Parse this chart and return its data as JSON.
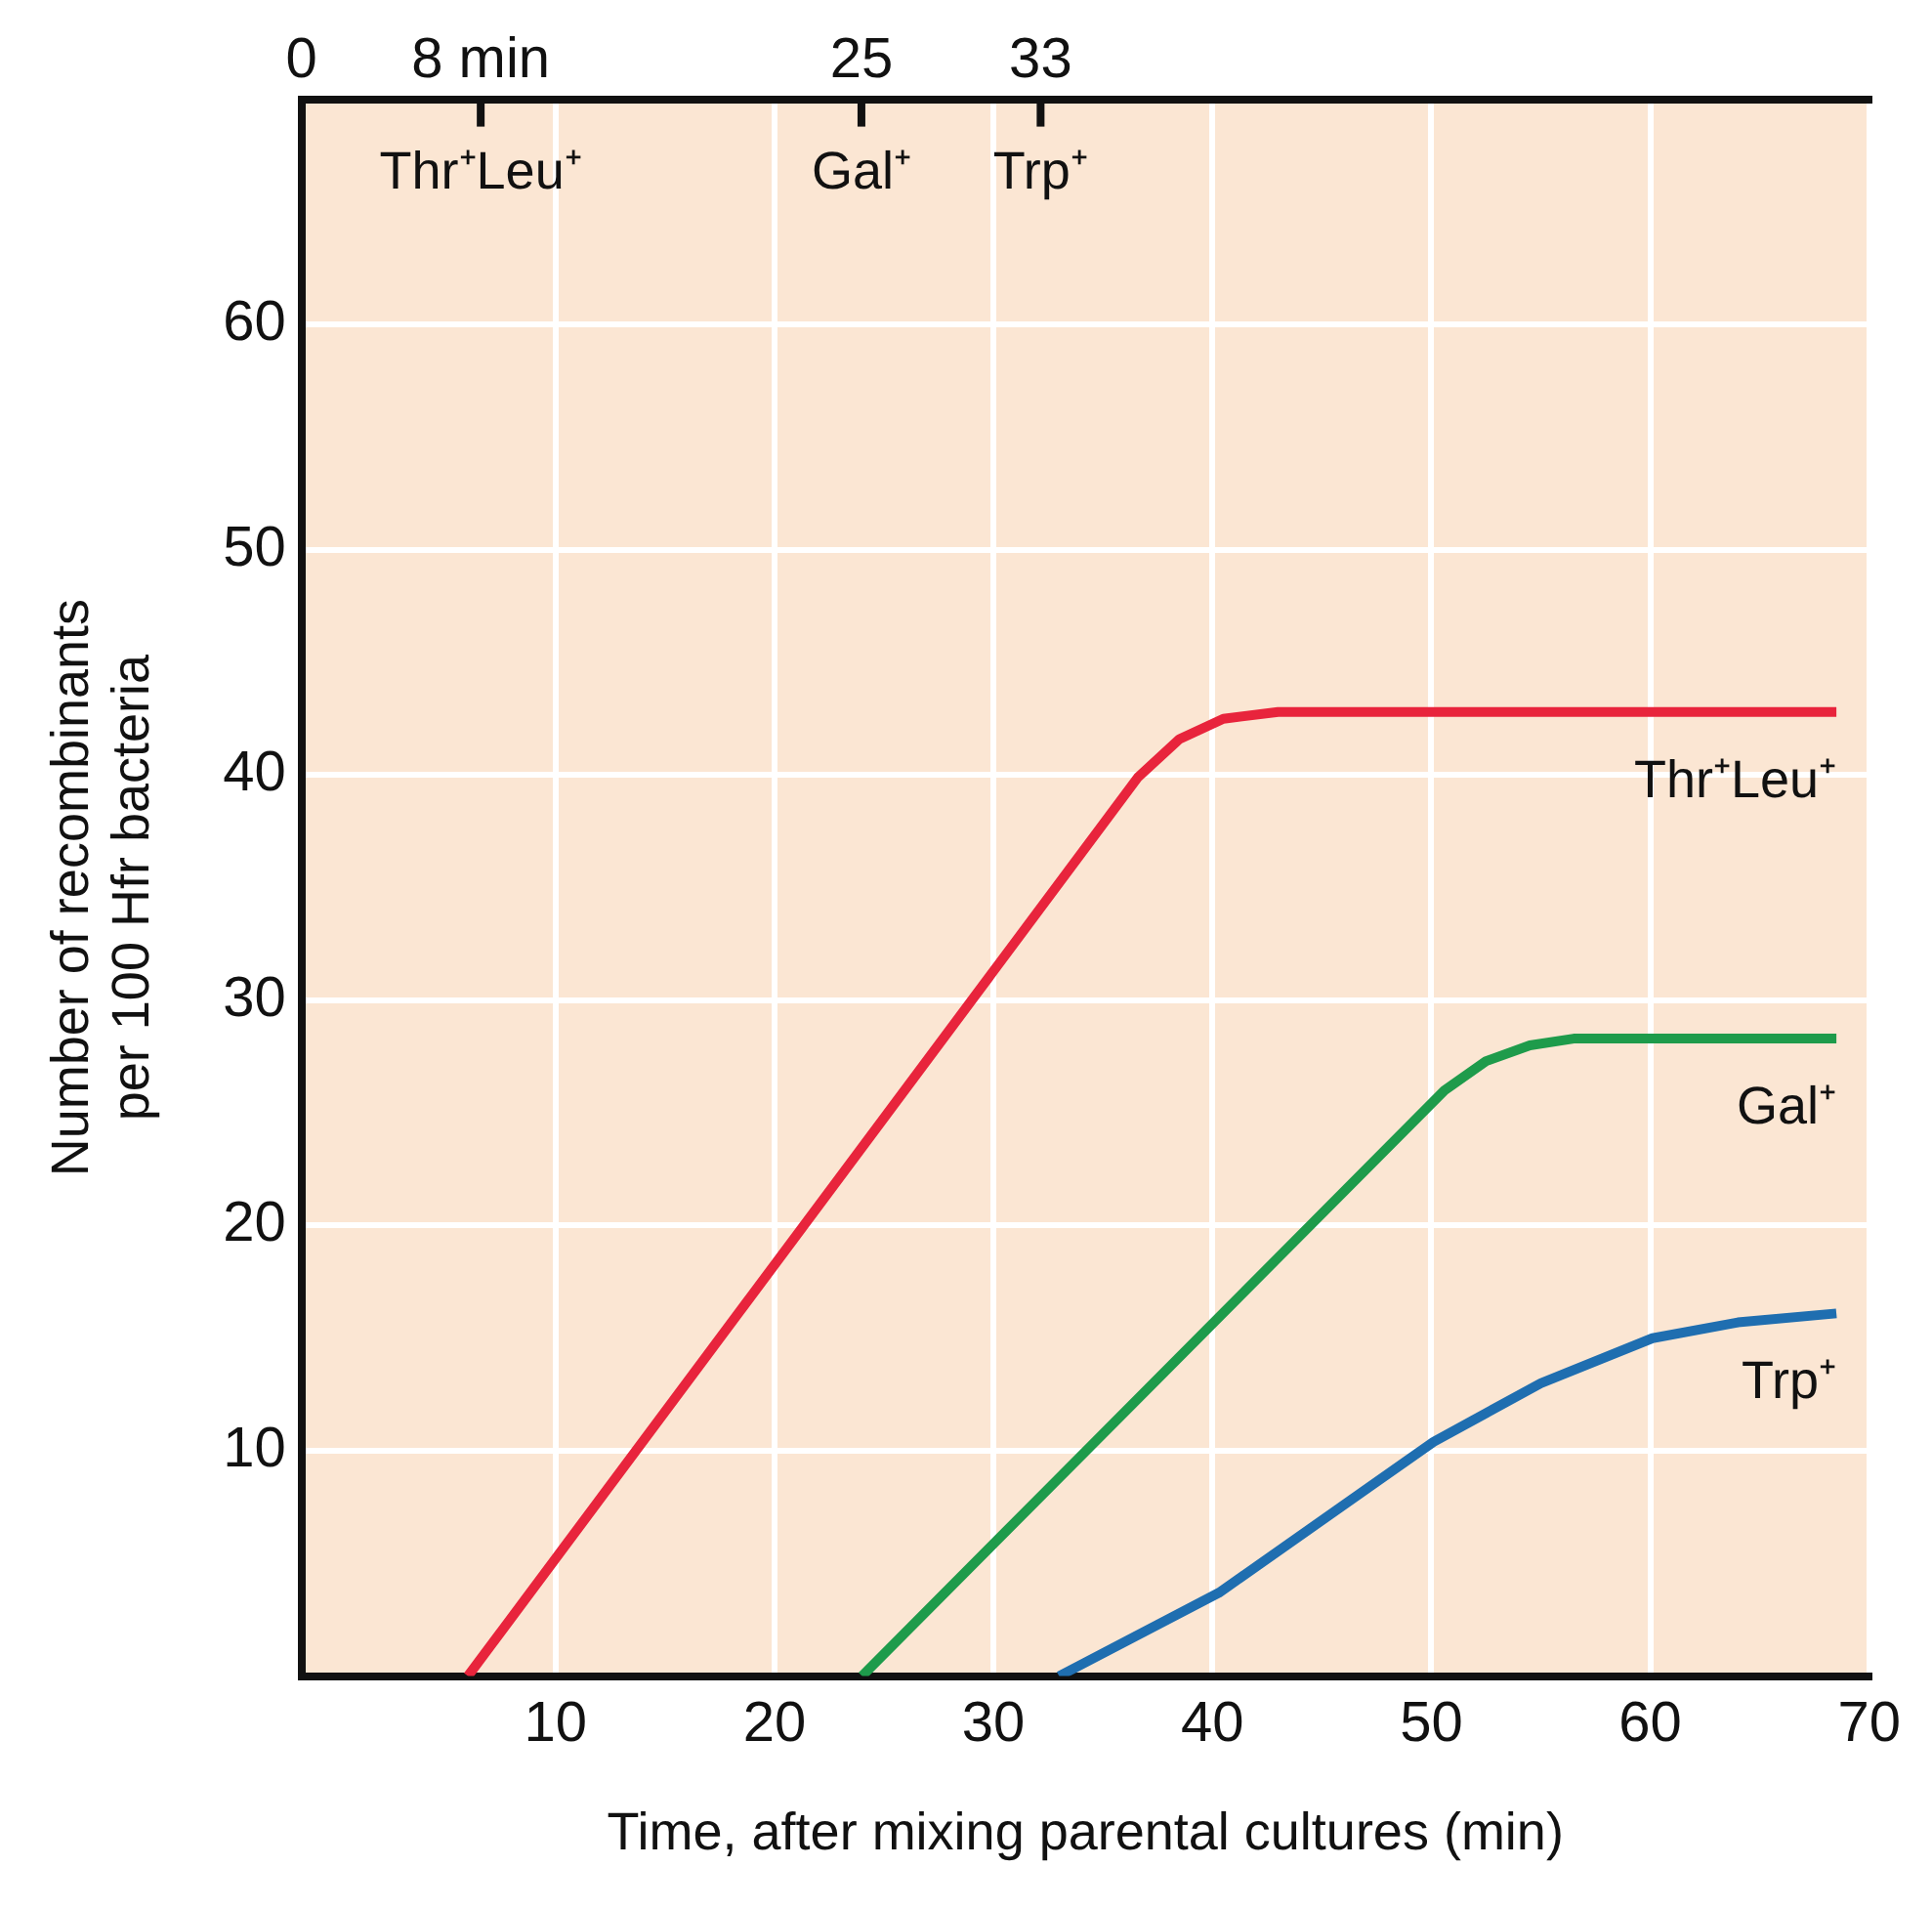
{
  "chart_data": {
    "type": "line",
    "xlabel": "Time, after mixing parental cultures (min)",
    "ylabel": "Number of recombinants\nper 100 Hfr bacteria",
    "xlim": [
      -1.6,
      70
    ],
    "xticks": [
      10,
      20,
      30,
      40,
      50,
      60,
      70
    ],
    "x2lim": [
      0,
      70
    ],
    "x2ticks": [
      0,
      {
        "value": 8,
        "label": "8 min"
      },
      25,
      33
    ],
    "ylim": [
      0,
      70
    ],
    "yticks": [
      10,
      20,
      30,
      40,
      50,
      60
    ],
    "grid": true,
    "legend": false,
    "marker": "none",
    "line_style": "solid",
    "annotations": [
      "Thr⁺Leu⁺",
      "Gal⁺",
      "Trp⁺"
    ],
    "series": [
      {
        "name": "Thr⁺Leu⁺",
        "color": "#e8243c",
        "x": [
          6,
          36.6,
          38.5,
          40.5,
          43,
          68.5
        ],
        "values": [
          0,
          39.9,
          41.6,
          42.5,
          42.8,
          42.8
        ]
      },
      {
        "name": "Gal⁺",
        "color": "#1e9b4b",
        "x": [
          24,
          50.6,
          52.5,
          54.5,
          56.5,
          68.5
        ],
        "values": [
          0,
          26,
          27.3,
          28,
          28.3,
          28.3
        ]
      },
      {
        "name": "Trp⁺",
        "color": "#1f6eb0",
        "x": [
          33,
          40.3,
          50.1,
          55,
          60.1,
          64,
          68.5
        ],
        "values": [
          0,
          3.7,
          10.4,
          13,
          15,
          15.7,
          16.1
        ]
      }
    ]
  }
}
